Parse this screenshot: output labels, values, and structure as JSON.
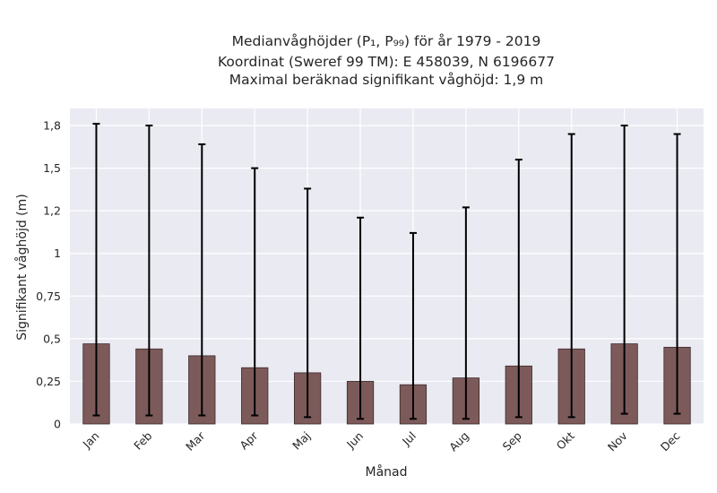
{
  "chart_data": {
    "type": "bar",
    "title": [
      "Medianvåghöjder (P₁, P₉₉) för år 1979 - 2019",
      "Koordinat (Sweref 99 TM): E 458039, N 6196677",
      "Maximal beräknad signifikant våghöjd: 1,9 m"
    ],
    "xlabel": "Månad",
    "ylabel": "Signifikant våghöjd (m)",
    "categories": [
      "Jan",
      "Feb",
      "Mar",
      "Apr",
      "Maj",
      "Jun",
      "Jul",
      "Aug",
      "Sep",
      "Okt",
      "Nov",
      "Dec"
    ],
    "values": [
      0.47,
      0.44,
      0.4,
      0.33,
      0.3,
      0.25,
      0.23,
      0.27,
      0.34,
      0.44,
      0.47,
      0.45
    ],
    "error_low": [
      0.05,
      0.05,
      0.05,
      0.05,
      0.04,
      0.03,
      0.03,
      0.03,
      0.04,
      0.04,
      0.06,
      0.06
    ],
    "error_high": [
      1.76,
      1.75,
      1.64,
      1.5,
      1.38,
      1.21,
      1.12,
      1.27,
      1.55,
      1.7,
      1.75,
      1.7
    ],
    "ylim": [
      0,
      1.85
    ],
    "yticks": [
      0,
      0.25,
      0.5,
      0.75,
      1,
      1.25,
      1.5,
      1.75
    ],
    "ytick_labels": [
      "0",
      "0,25",
      "0,5",
      "0,75",
      "1",
      "1,2",
      "1,5",
      "1,8"
    ],
    "grid": true,
    "colors": {
      "bar": "#7d5a5a",
      "bar_edge": "#3a2a2a",
      "error": "#000000",
      "plot_bg": "#eaeaf2",
      "grid": "#ffffff"
    }
  }
}
